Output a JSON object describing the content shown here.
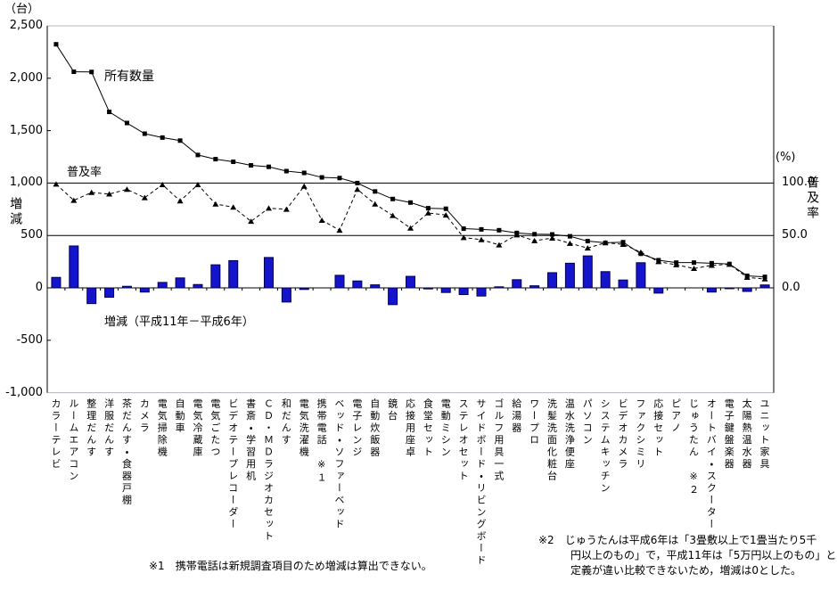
{
  "axes": {
    "left_unit": "（台）",
    "left_axis_name": "増減",
    "left_ticks": [
      {
        "label": "2,500",
        "value": 2500
      },
      {
        "label": "2,000",
        "value": 2000
      },
      {
        "label": "1,500",
        "value": 1500
      },
      {
        "label": "1,000",
        "value": 1000
      },
      {
        "label": "500",
        "value": 500
      },
      {
        "label": "0",
        "value": 0
      },
      {
        "label": "-500",
        "value": -500
      },
      {
        "label": "-1,000",
        "value": -1000
      }
    ],
    "right_unit": "(%)",
    "right_axis_name": "普及率",
    "right_ticks": [
      {
        "label": "100.0",
        "value": 100
      },
      {
        "label": "50.0",
        "value": 50
      },
      {
        "label": "0.0",
        "value": 0
      }
    ]
  },
  "annotations": {
    "quantity_label": "所有数量",
    "rate_label": "普及率",
    "delta_label": "増減（平成11年－平成6年）"
  },
  "footnotes": {
    "note1": "※1　携帯電話は新規調査項目のため増減は算出できない。",
    "note2_line1": "※2　じゅうたんは平成6年は「3畳敷以上で1畳当たり5千",
    "note2_line2": "円以上のもの」で，平成11年は「5万円以上のもの」と",
    "note2_line3": "定義が違い比較できないため，増減は0とした。"
  },
  "colors": {
    "bar_fill": "#1414cc",
    "bar_stroke": "#000050",
    "line_color": "#000000",
    "frame_gray": "#b4b4c0",
    "axis_black": "#000000"
  },
  "chart_data": {
    "type": "line",
    "note": "combo chart: two lines (left axis = units per 1000 households, right axis = diffusion rate %) plus bars (change H11-H6)",
    "ylim_left": [
      -1000,
      2500
    ],
    "ylim_right": [
      0,
      100
    ],
    "right_axis_mapping": "100% aligns with 1,000 on left axis; 0% aligns with 0",
    "grid_values_left": [
      1000,
      500,
      0
    ],
    "categories": [
      "カラーテレビ",
      "ルームエアコン",
      "整理だんす",
      "洋服だんす",
      "茶だんす・食器戸棚",
      "カメラ",
      "電気掃除機",
      "自動車",
      "電気冷蔵庫",
      "電気ごたつ",
      "ビデオテープレコーダー",
      "書斎・学習用机",
      "ＣＤ・ＭＤラジオカセット",
      "和だんす",
      "電気洗濯機",
      "携帯電話　※１",
      "ベッド・ソファーベッド",
      "電子レンジ",
      "自動炊飯器",
      "鏡台",
      "応接用座卓",
      "食堂セット",
      "電動ミシン",
      "ステレオセット",
      "サイドボード・リビングボード",
      "ゴルフ用具一式",
      "給湯器",
      "ワープロ",
      "洗髪洗面化粧台",
      "温水洗浄便座",
      "パソコン",
      "システムキッチン",
      "ビデオカメラ",
      "ファクシミリ",
      "応接セット",
      "ピアノ",
      "じゅうたん　※２",
      "オートバイ・スクーター",
      "電子鍵盤楽器",
      "太陽熱温水器",
      "ユニット家具"
    ],
    "series": [
      {
        "name": "所有数量",
        "type": "line",
        "axis": "left",
        "marker": "square",
        "values": [
          2324,
          2062,
          2060,
          1679,
          1573,
          1471,
          1434,
          1405,
          1268,
          1228,
          1203,
          1169,
          1155,
          1114,
          1097,
          1054,
          1048,
          1000,
          920,
          848,
          814,
          760,
          755,
          565,
          558,
          550,
          524,
          512,
          510,
          492,
          446,
          430,
          436,
          325,
          264,
          241,
          241,
          235,
          228,
          115,
          105
        ]
      },
      {
        "name": "普及率",
        "type": "line",
        "style": "dashed",
        "axis": "right",
        "marker": "triangle",
        "values": [
          99,
          83.5,
          91,
          89.5,
          94,
          86,
          98.5,
          83,
          98.5,
          80,
          77,
          63.5,
          76,
          75,
          97,
          64.5,
          55,
          94,
          80,
          69,
          57,
          71.5,
          69.5,
          48,
          46,
          41,
          50.5,
          45,
          47.5,
          42.5,
          38,
          43,
          41.5,
          34,
          25,
          22,
          18.5,
          21.5,
          22.5,
          10,
          8.5
        ]
      },
      {
        "name": "増減（平成11年－平成6年）",
        "type": "bar",
        "axis": "left",
        "values": [
          100,
          400,
          -150,
          -90,
          15,
          -40,
          52,
          95,
          32,
          220,
          260,
          0,
          290,
          -135,
          -15,
          null,
          120,
          66,
          29,
          -160,
          110,
          -10,
          -44,
          -64,
          -78,
          10,
          78,
          20,
          145,
          235,
          305,
          155,
          75,
          240,
          -50,
          0,
          0,
          -40,
          -8,
          -34,
          28
        ]
      }
    ]
  }
}
